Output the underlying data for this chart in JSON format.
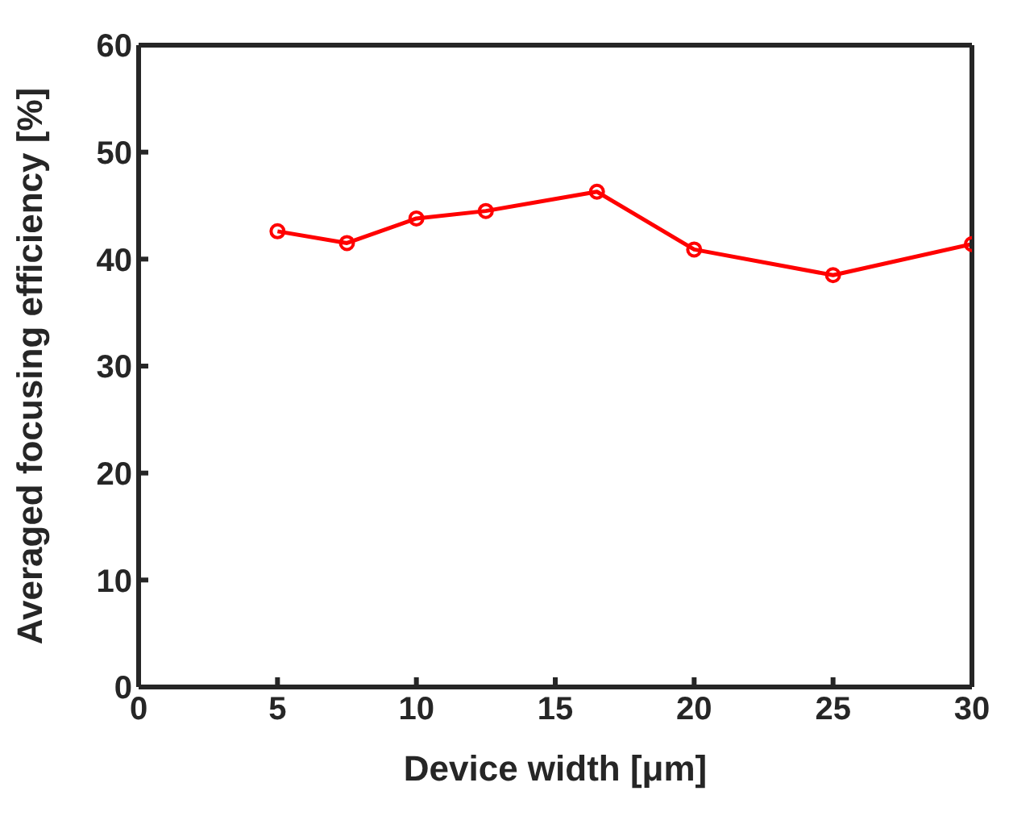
{
  "chart_data": {
    "type": "line",
    "xlabel": "Device width [μm]",
    "ylabel": "Averaged focusing efficiency [%]",
    "x": [
      5,
      7.5,
      10,
      12.5,
      16.5,
      20,
      25,
      30
    ],
    "series": [
      {
        "color": "#ff0000",
        "values": [
          42.6,
          41.5,
          43.8,
          44.5,
          46.3,
          40.9,
          38.5,
          41.4
        ]
      }
    ],
    "xlim": [
      0,
      30
    ],
    "xticks": [
      0,
      5,
      10,
      15,
      20,
      25,
      30
    ],
    "ylim": [
      0,
      60
    ],
    "yticks": [
      0,
      10,
      20,
      30,
      40,
      50,
      60
    ],
    "grid": false,
    "legend": false,
    "marker": "circle",
    "line_style": "solid"
  }
}
